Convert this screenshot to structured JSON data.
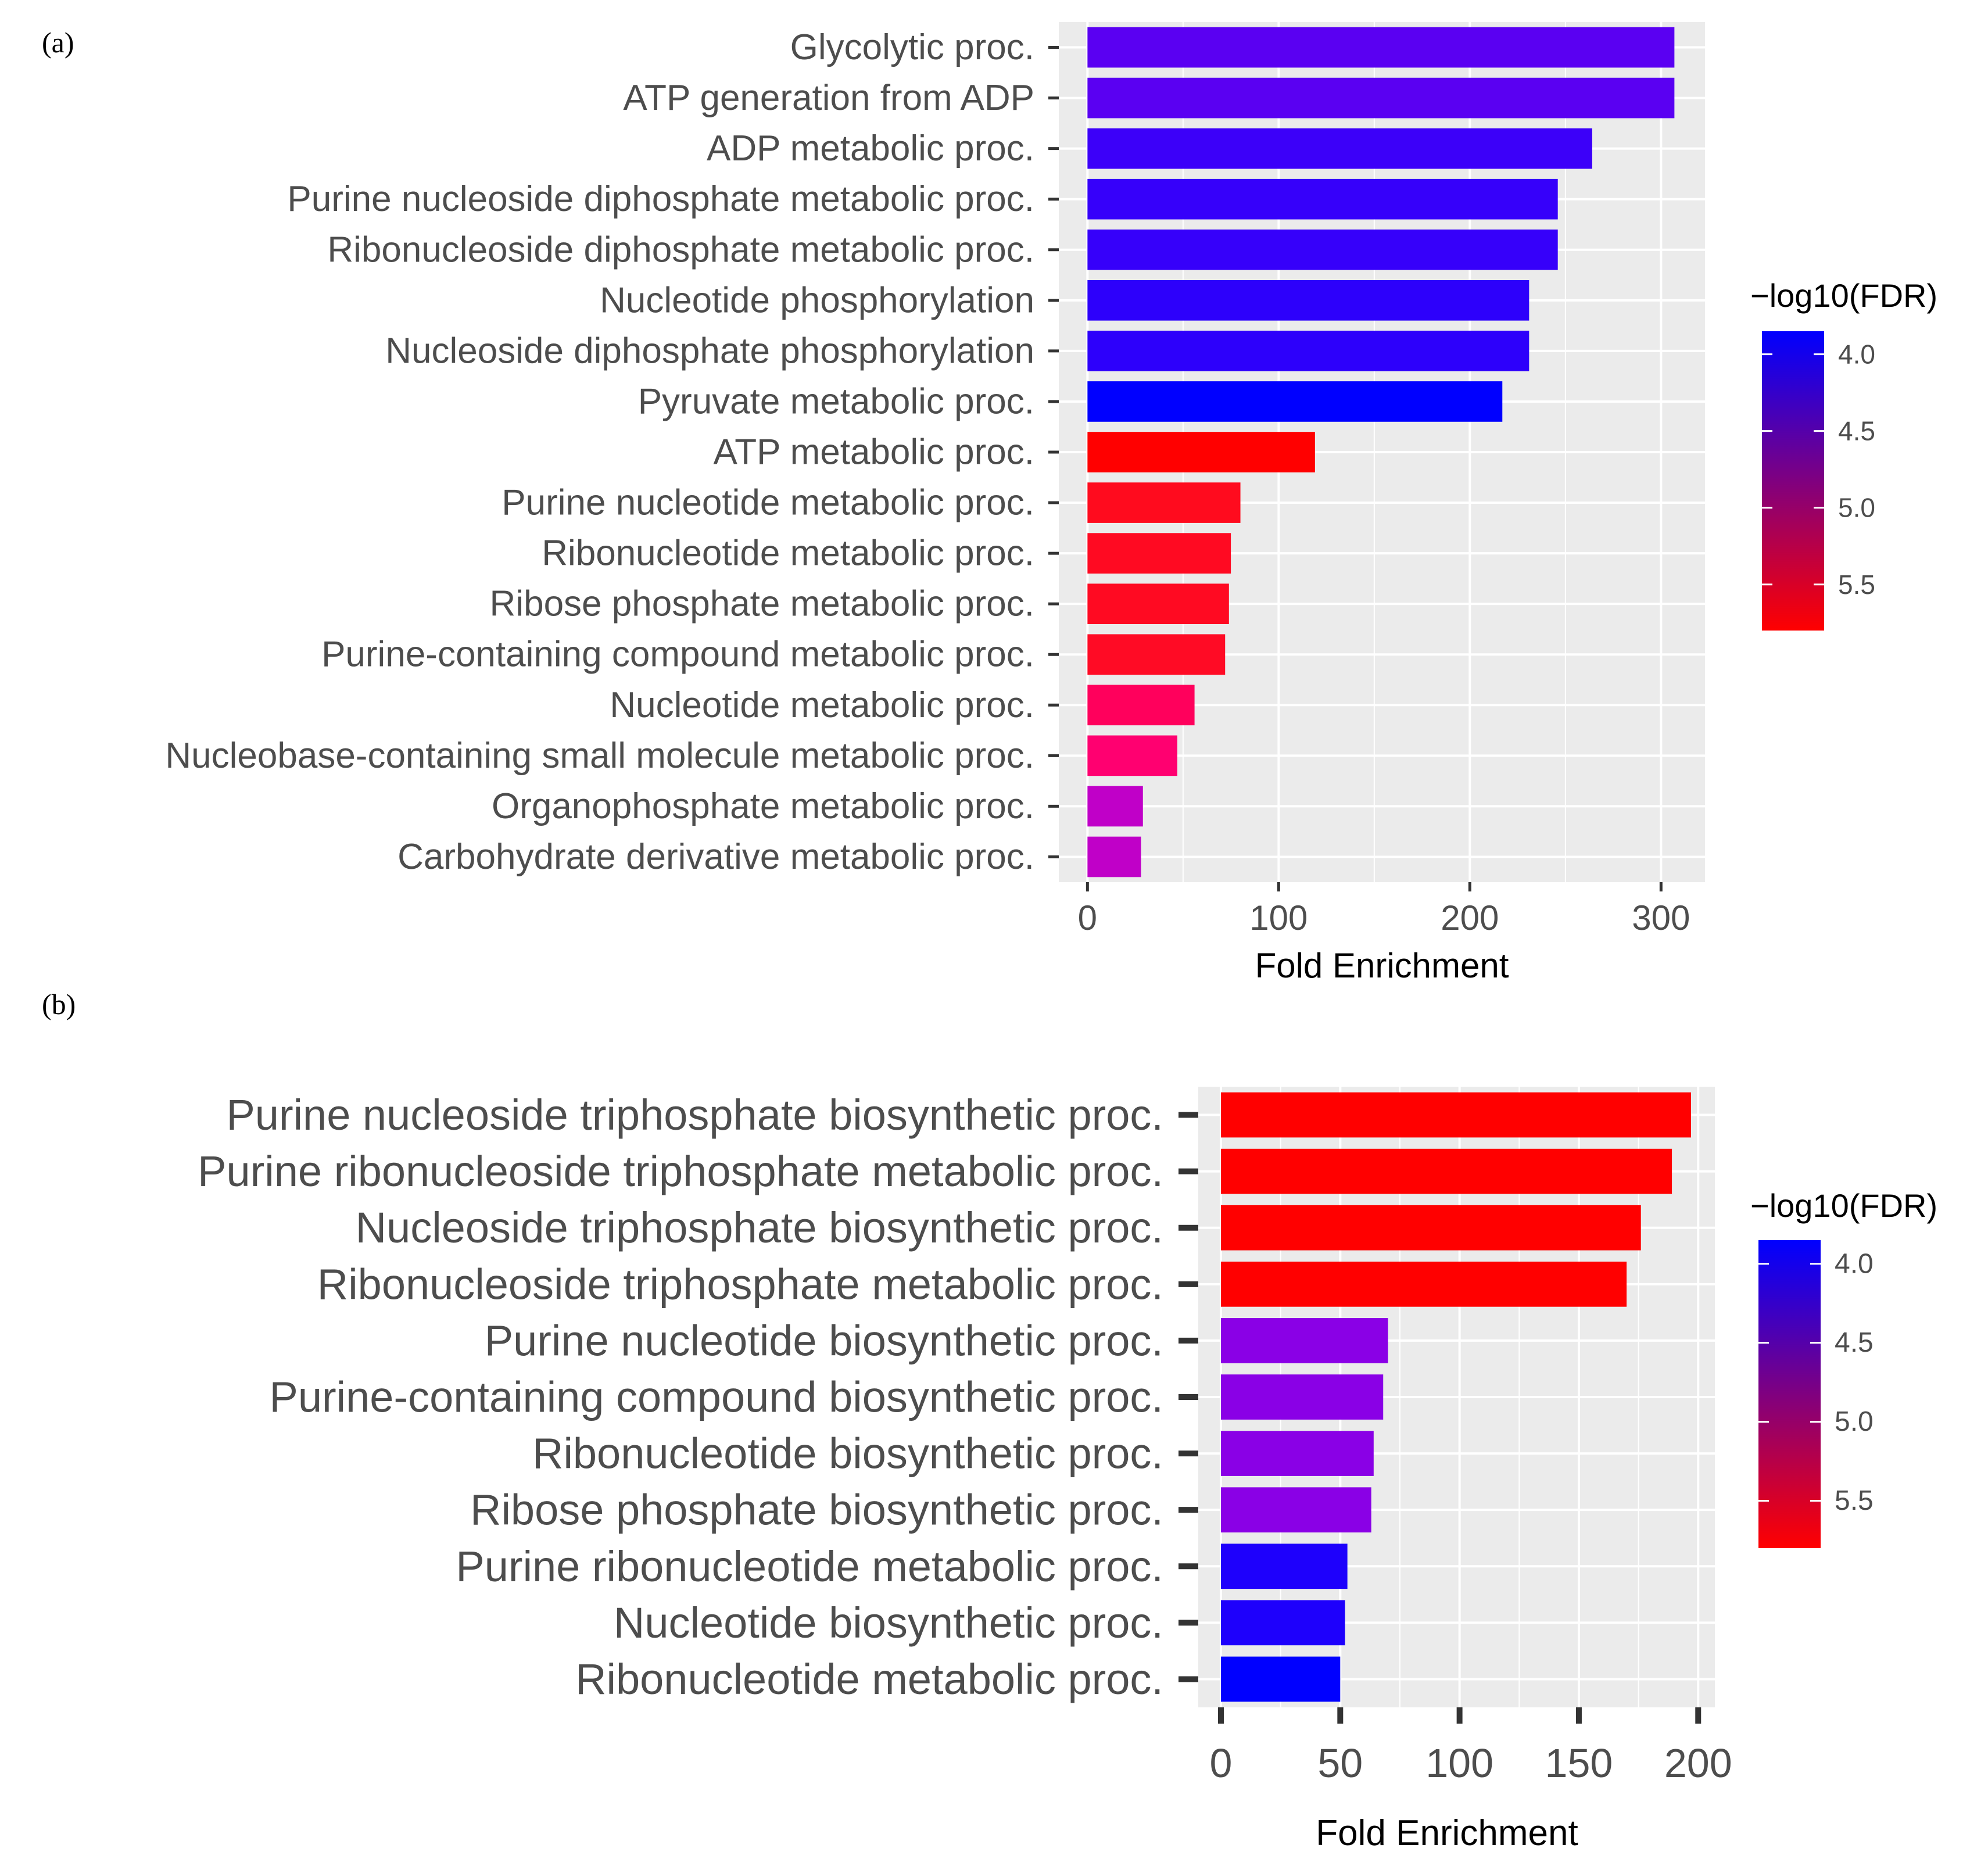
{
  "chart_data": [
    {
      "panel": "(a)",
      "type": "bar",
      "orientation": "horizontal",
      "categories": [
        "Glycolytic proc.",
        "ATP generation from ADP",
        "ADP metabolic proc.",
        "Purine nucleoside diphosphate metabolic proc.",
        "Ribonucleoside diphosphate metabolic proc.",
        "Nucleotide phosphorylation",
        "Nucleoside diphosphate phosphorylation",
        "Pyruvate metabolic proc.",
        "ATP metabolic proc.",
        "Purine nucleotide metabolic proc.",
        "Ribonucleotide metabolic proc.",
        "Ribose phosphate metabolic proc.",
        "Purine-containing compound metabolic proc.",
        "Nucleotide metabolic proc.",
        "Nucleobase-containing small molecule metabolic proc.",
        "Organophosphate metabolic proc.",
        "Carbohydrate derivative metabolic proc."
      ],
      "values": [
        307,
        307,
        264,
        246,
        246,
        231,
        231,
        217,
        119,
        80,
        75,
        74,
        72,
        56,
        47,
        29,
        28
      ],
      "colors": [
        "#5a00f2",
        "#5a00f2",
        "#3c00f9",
        "#3600fa",
        "#3600fa",
        "#2d00fb",
        "#2d00fb",
        "#0000ff",
        "#ff0000",
        "#ff0b1e",
        "#ff0a22",
        "#ff0a22",
        "#ff0b25",
        "#ff005c",
        "#ff0070",
        "#c000c8",
        "#c000c8"
      ],
      "xlabel": "Fold Enrichment",
      "ylabel": "",
      "xlim": [
        -15,
        323
      ],
      "xticks": [
        0,
        100,
        200,
        300
      ],
      "xtick_labels": [
        "0",
        "100",
        "200",
        "300"
      ],
      "legend": {
        "title": "−log10(FDR)",
        "ticks": [
          "4.0",
          "4.5",
          "5.0",
          "5.5"
        ],
        "tick_values": [
          4.0,
          4.5,
          5.0,
          5.5
        ],
        "range": [
          3.85,
          5.8
        ],
        "low_color": "#0000ff",
        "high_color": "#ff0000",
        "placement": "right"
      }
    },
    {
      "panel": "(b)",
      "type": "bar",
      "orientation": "horizontal",
      "categories": [
        "Purine nucleoside triphosphate biosynthetic proc.",
        "Purine ribonucleoside triphosphate metabolic proc.",
        "Nucleoside triphosphate biosynthetic proc.",
        "Ribonucleoside triphosphate metabolic proc.",
        "Purine nucleotide biosynthetic proc.",
        "Purine-containing compound biosynthetic proc.",
        "Ribonucleotide biosynthetic proc.",
        "Ribose phosphate biosynthetic proc.",
        "Purine ribonucleotide metabolic proc.",
        "Nucleotide biosynthetic proc.",
        "Ribonucleotide metabolic proc."
      ],
      "values": [
        197,
        189,
        176,
        170,
        70,
        68,
        64,
        63,
        53,
        52,
        50
      ],
      "colors": [
        "#ff0000",
        "#ff0000",
        "#ff0000",
        "#ff0000",
        "#8a00e6",
        "#8a00e6",
        "#8a00e6",
        "#8a00e6",
        "#1e00fc",
        "#1e00fc",
        "#0000ff"
      ],
      "xlabel": "Fold Enrichment",
      "ylabel": "",
      "xlim": [
        -9.5,
        207
      ],
      "xticks": [
        0,
        50,
        100,
        150,
        200
      ],
      "xtick_labels": [
        "0",
        "50",
        "100",
        "150",
        "200"
      ],
      "legend": {
        "title": "−log10(FDR)",
        "ticks": [
          "4.0",
          "4.5",
          "5.0",
          "5.5"
        ],
        "tick_values": [
          4.0,
          4.5,
          5.0,
          5.5
        ],
        "range": [
          3.85,
          5.8
        ],
        "low_color": "#0000ff",
        "high_color": "#ff0000",
        "placement": "right"
      }
    }
  ]
}
